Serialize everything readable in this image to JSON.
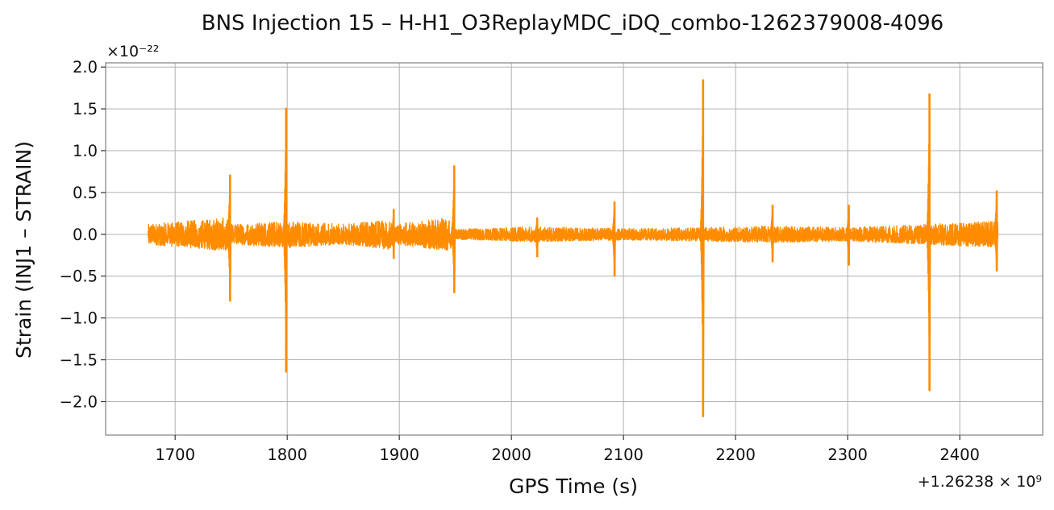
{
  "chart_data": {
    "type": "line",
    "title": "BNS Injection 15 – H-H1_O3ReplayMDC_iDQ_combo-1262379008-4096",
    "xlabel": "GPS Time (s)",
    "ylabel": "Strain (INJ1 – STRAIN)",
    "x_offset_text": "+1.26238 × 10⁹",
    "y_scale_text": "×10⁻²²",
    "xlim": [
      1638,
      2474
    ],
    "ylim": [
      -2.4,
      2.05
    ],
    "x_ticks": [
      1700,
      1800,
      1900,
      2000,
      2100,
      2200,
      2300,
      2400
    ],
    "x_tick_labels": [
      "1700",
      "1800",
      "1900",
      "2000",
      "2100",
      "2200",
      "2300",
      "2400"
    ],
    "y_ticks": [
      -2.0,
      -1.5,
      -1.0,
      -0.5,
      0.0,
      0.5,
      1.0,
      1.5,
      2.0
    ],
    "y_tick_labels": [
      "−2.0",
      "−1.5",
      "−1.0",
      "−0.5",
      "0.0",
      "0.5",
      "1.0",
      "1.5",
      "2.0"
    ],
    "grid": true,
    "line_color": "#ff8c00",
    "data_range_x": [
      1676,
      2434
    ],
    "background_noise_amplitude": [
      [
        1676,
        0.12
      ],
      [
        1745,
        0.2
      ],
      [
        1749,
        0.12
      ],
      [
        1800,
        0.16
      ],
      [
        1850,
        0.12
      ],
      [
        1890,
        0.18
      ],
      [
        1896,
        0.12
      ],
      [
        1945,
        0.2
      ],
      [
        1950,
        0.06
      ],
      [
        2020,
        0.09
      ],
      [
        2100,
        0.07
      ],
      [
        2170,
        0.08
      ],
      [
        2230,
        0.1
      ],
      [
        2300,
        0.08
      ],
      [
        2370,
        0.12
      ],
      [
        2434,
        0.16
      ]
    ],
    "spikes": [
      {
        "x": 1749,
        "max": 0.71,
        "min": -0.8
      },
      {
        "x": 1799,
        "max": 1.51,
        "min": -1.65
      },
      {
        "x": 1895,
        "max": 0.3,
        "min": -0.29
      },
      {
        "x": 1949,
        "max": 0.82,
        "min": -0.7
      },
      {
        "x": 2023,
        "max": 0.2,
        "min": -0.27
      },
      {
        "x": 2092,
        "max": 0.39,
        "min": -0.5
      },
      {
        "x": 2171,
        "max": 1.85,
        "min": -2.18
      },
      {
        "x": 2233,
        "max": 0.35,
        "min": -0.33
      },
      {
        "x": 2301,
        "max": 0.35,
        "min": -0.37
      },
      {
        "x": 2373,
        "max": 1.68,
        "min": -1.87
      },
      {
        "x": 2433,
        "max": 0.52,
        "min": -0.44
      }
    ],
    "series": [
      {
        "values_described_by": "background_noise_amplitude + spikes"
      }
    ]
  }
}
